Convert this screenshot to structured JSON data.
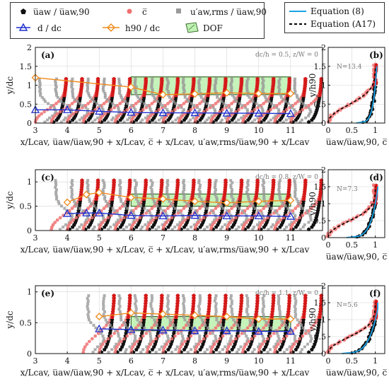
{
  "legend_left": {
    "items": [
      {
        "label": "u̅aw / u̅aw,90",
        "marker": "black-pentagon-icon"
      },
      {
        "label": "c̅",
        "marker": "red-circle-icon"
      },
      {
        "label": "u′aw,rms / u̅aw,90",
        "marker": "gray-square-icon"
      },
      {
        "label": "d / dc",
        "marker": "blue-triangle-icon"
      },
      {
        "label": "h90 / dc",
        "marker": "orange-diamond-icon"
      },
      {
        "label": "DOF",
        "marker": "green-hatch-icon"
      }
    ]
  },
  "legend_right": {
    "items": [
      {
        "label": "Equation (8)",
        "color": "#1aa3e8",
        "style": "solid"
      },
      {
        "label": "Equation (A17)",
        "color": "#000000",
        "style": "dashed"
      }
    ]
  },
  "colors": {
    "velocity": "#111111",
    "concentration": "#f07070",
    "rms": "#9a9a9a",
    "depth": "#1f2fd0",
    "h90": "#f08a1a",
    "dof_fill": "#bff2b3",
    "dof_edge": "#3a6a2a",
    "eq8": "#1aa3e8",
    "eqA17": "#000000",
    "velocity_tip": "#d41818"
  },
  "chart_data": [
    {
      "type": "scatter",
      "panel": "(a)",
      "note": "dc/h = 0.5, z/W = 0",
      "xlabel": "x/Lcav, u̅aw/u̅aw,90 + x/Lcav, c̅ + x/Lcav, u′aw,rms/u̅aw,90 + x/Lcav",
      "ylabel": "y/dc",
      "xlim": [
        3,
        12
      ],
      "ylim": [
        0,
        2
      ],
      "xticks": [
        3,
        4,
        5,
        6,
        7,
        8,
        9,
        10,
        11
      ],
      "yticks": [
        0,
        0.5,
        1,
        1.5,
        2
      ],
      "profile_positions": [
        3.5,
        4,
        4.5,
        5,
        5.5,
        6,
        6.5,
        7,
        7.5,
        8,
        8.5,
        9,
        9.5,
        10,
        10.5,
        11,
        11.5
      ],
      "dof": {
        "x": [
          6,
          11
        ],
        "y": [
          0.75,
          1.22
        ]
      },
      "depth_series": {
        "name": "d/dc",
        "x": [
          3,
          4,
          5,
          6,
          7,
          8,
          9,
          10,
          11
        ],
        "y": [
          0.35,
          0.35,
          0.31,
          0.28,
          0.27,
          0.27,
          0.26,
          0.26,
          0.25
        ]
      },
      "h90_series": {
        "name": "h90/dc",
        "x": [
          3,
          6,
          7,
          8,
          9,
          10,
          11
        ],
        "y": [
          1.2,
          0.95,
          0.75,
          0.77,
          0.8,
          0.78,
          0.78
        ]
      }
    },
    {
      "type": "scatter",
      "panel": "(c)",
      "note": "dc/h = 0.8, z/W = 0",
      "xlabel": "x/Lcav, u̅aw/u̅aw,90 + x/Lcav, c̅ + x/Lcav, u′aw,rms/u̅aw,90 + x/Lcav",
      "ylabel": "y/dc",
      "xlim": [
        3,
        12
      ],
      "ylim": [
        0,
        1.25
      ],
      "xticks": [
        3,
        4,
        5,
        6,
        7,
        8,
        9,
        10,
        11
      ],
      "yticks": [
        0,
        0.5,
        1
      ],
      "profile_positions": [
        4,
        4.5,
        5,
        5.5,
        6,
        6.5,
        7,
        7.5,
        8,
        8.5,
        9,
        9.5,
        10,
        10.5,
        11,
        11.5
      ],
      "dof": {
        "x": [
          6,
          11
        ],
        "y": [
          0.5,
          0.75
        ]
      },
      "depth_series": {
        "name": "d/dc",
        "x": [
          4,
          4.6,
          5,
          6,
          7,
          8,
          9,
          10,
          11
        ],
        "y": [
          0.35,
          0.36,
          0.36,
          0.31,
          0.3,
          0.31,
          0.3,
          0.3,
          0.29
        ]
      },
      "h90_series": {
        "name": "h90/dc",
        "x": [
          4,
          4.6,
          5,
          6,
          7,
          8,
          9,
          10,
          11
        ],
        "y": [
          0.58,
          0.74,
          0.78,
          0.68,
          0.65,
          0.6,
          0.57,
          0.6,
          0.62
        ]
      }
    },
    {
      "type": "scatter",
      "panel": "(e)",
      "note": "dc/h = 1.1, z/W = 0",
      "xlabel": "x/Lcav, u̅aw/u̅aw,90 + x/Lcav, c̅ + x/Lcav, u′aw,rms/u̅aw,90 + x/Lcav",
      "ylabel": "y/dc",
      "xlim": [
        3,
        12
      ],
      "ylim": [
        0,
        1.1
      ],
      "xticks": [
        3,
        4,
        5,
        6,
        7,
        8,
        9,
        10,
        11
      ],
      "yticks": [
        0,
        0.5,
        1
      ],
      "profile_positions": [
        5,
        5.5,
        6,
        6.5,
        7,
        7.5,
        8,
        8.5,
        9,
        9.5,
        10,
        10.5,
        11,
        11.5
      ],
      "dof": {
        "x": [
          6,
          11
        ],
        "y": [
          0.37,
          0.6
        ]
      },
      "depth_series": {
        "name": "d/dc",
        "x": [
          5,
          6,
          7,
          8,
          9,
          10,
          11
        ],
        "y": [
          0.4,
          0.39,
          0.38,
          0.37,
          0.37,
          0.36,
          0.36
        ]
      },
      "h90_series": {
        "name": "h90/dc",
        "x": [
          5,
          6,
          7,
          8,
          9,
          10,
          11
        ],
        "y": [
          0.6,
          0.66,
          0.64,
          0.62,
          0.6,
          0.56,
          0.56
        ]
      }
    },
    {
      "type": "scatter",
      "panel": "(b)",
      "annotation": "N=13.4",
      "xlabel": "u̅aw/u̅aw,90, c̅",
      "ylabel": "y/h90",
      "xlim": [
        0,
        1.2
      ],
      "ylim": [
        0,
        2
      ],
      "xticks": [
        0,
        0.5,
        1
      ],
      "xtick_labels": [
        "0",
        "0.5",
        "1"
      ],
      "yticks": [
        0,
        0.5,
        1,
        1.5,
        2
      ],
      "N": 13.4
    },
    {
      "type": "scatter",
      "panel": "(d)",
      "annotation": "N=7.3",
      "xlabel": "u̅aw/u̅aw,90, c̅",
      "ylabel": "y/h90",
      "xlim": [
        0,
        1.2
      ],
      "ylim": [
        0,
        2
      ],
      "xticks": [
        0,
        0.5,
        1
      ],
      "xtick_labels": [
        "0",
        "0.5",
        "1"
      ],
      "yticks": [
        0,
        0.5,
        1,
        1.5,
        2
      ],
      "N": 7.3
    },
    {
      "type": "scatter",
      "panel": "(f)",
      "annotation": "N=5.6",
      "xlabel": "u̅aw/u̅aw,90, c̅",
      "ylabel": "y/h90",
      "xlim": [
        0,
        1.2
      ],
      "ylim": [
        0,
        2
      ],
      "xticks": [
        0,
        0.5,
        1
      ],
      "xtick_labels": [
        "0",
        "0.5",
        "1"
      ],
      "yticks": [
        0,
        0.5,
        1,
        1.5,
        2
      ],
      "N": 5.6
    }
  ]
}
